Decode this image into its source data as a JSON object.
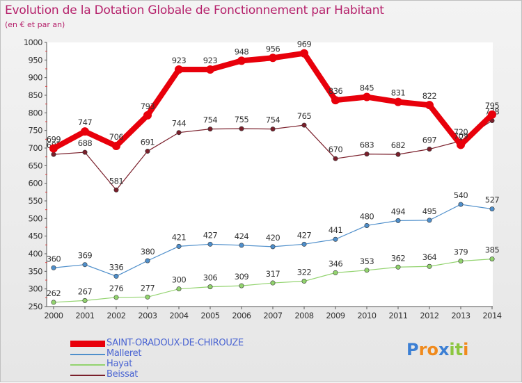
{
  "title": "Evolution de la Dotation Globale de Fonctionnement par Habitant",
  "subtitle": "(en € et par an)",
  "brand": {
    "text": "Proxiti",
    "letters": [
      {
        "ch": "P",
        "color": "#3b7fd4"
      },
      {
        "ch": "r",
        "color": "#f08a1c"
      },
      {
        "ch": "o",
        "color": "#f08a1c"
      },
      {
        "ch": "x",
        "color": "#3b7fd4"
      },
      {
        "ch": "i",
        "color": "#8cc63f"
      },
      {
        "ch": "t",
        "color": "#8cc63f"
      },
      {
        "ch": "i",
        "color": "#f08a1c"
      }
    ]
  },
  "chart_data": {
    "type": "line",
    "title": "Evolution de la Dotation Globale de Fonctionnement par Habitant",
    "subtitle": "(en € et par an)",
    "x": [
      "2000",
      "2001",
      "2002",
      "2003",
      "2004",
      "2005",
      "2006",
      "2007",
      "2008",
      "2009",
      "2010",
      "2011",
      "2012",
      "2013",
      "2014"
    ],
    "ylim": [
      250,
      1000
    ],
    "yticks": [
      250,
      300,
      350,
      400,
      450,
      500,
      550,
      600,
      650,
      700,
      750,
      800,
      850,
      900,
      950,
      1000
    ],
    "grid": false,
    "legend_position": "bottom-left",
    "series": [
      {
        "name": "SAINT-ORADOUX-DE-CHIROUZE",
        "color": "#e8000b",
        "style": "thick",
        "values": [
          699,
          747,
          706,
          793,
          923,
          923,
          948,
          956,
          969,
          836,
          845,
          831,
          822,
          709,
          795
        ],
        "labels": [
          "699",
          "747",
          "706",
          "793",
          "923",
          "923",
          "948",
          "956",
          "969",
          "836",
          "845",
          "831",
          "822",
          "709",
          "795"
        ]
      },
      {
        "name": "Malleret",
        "color": "#4f8fcb",
        "style": "thin",
        "values": [
          360,
          369,
          336,
          380,
          421,
          427,
          424,
          420,
          427,
          441,
          480,
          494,
          495,
          540,
          527
        ],
        "labels": [
          "360",
          "369",
          "336",
          "380",
          "421",
          "427",
          "424",
          "420",
          "427",
          "441",
          "480",
          "494",
          "495",
          "540",
          "527"
        ]
      },
      {
        "name": "Hayat",
        "color": "#92d36e",
        "style": "thin",
        "values": [
          262,
          267,
          276,
          277,
          300,
          306,
          309,
          317,
          322,
          346,
          353,
          362,
          364,
          379,
          385
        ],
        "labels": [
          "262",
          "267",
          "276",
          "277",
          "300",
          "306",
          "309",
          "317",
          "322",
          "346",
          "353",
          "362",
          "364",
          "379",
          "385"
        ]
      },
      {
        "name": "Beissat",
        "color": "#7a1f2b",
        "style": "thin",
        "values": [
          682,
          688,
          581,
          691,
          744,
          754,
          755,
          754,
          765,
          670,
          683,
          682,
          697,
          720,
          778
        ],
        "labels": [
          "682",
          "688",
          "581",
          "691",
          "744",
          "754",
          "755",
          "754",
          "765",
          "670",
          "683",
          "682",
          "697",
          "720",
          "778"
        ]
      }
    ]
  }
}
